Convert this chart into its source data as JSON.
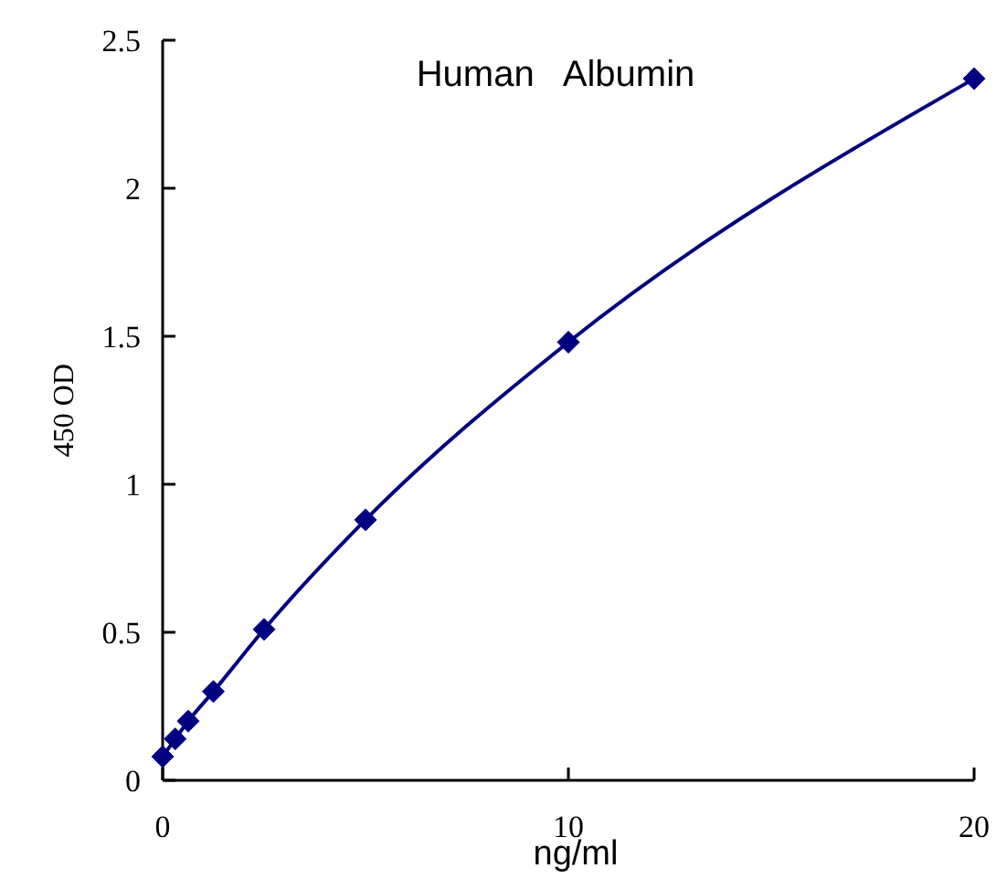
{
  "chart_data": {
    "type": "line",
    "title": "Human   Albumin",
    "xlabel": "ng/ml",
    "ylabel": "450 OD",
    "x": [
      0,
      0.31,
      0.63,
      1.25,
      2.5,
      5,
      10,
      20
    ],
    "series": [
      {
        "color": "#000080",
        "values": [
          0.08,
          0.14,
          0.2,
          0.3,
          0.51,
          0.88,
          1.48,
          2.37
        ]
      }
    ],
    "xlim": [
      0,
      20
    ],
    "xticks": [
      0,
      10,
      20
    ],
    "ylim": [
      0,
      2.5
    ],
    "yticks": [
      0,
      0.5,
      1,
      1.5,
      2,
      2.5
    ],
    "marker": "diamond",
    "line_style": "solid"
  }
}
